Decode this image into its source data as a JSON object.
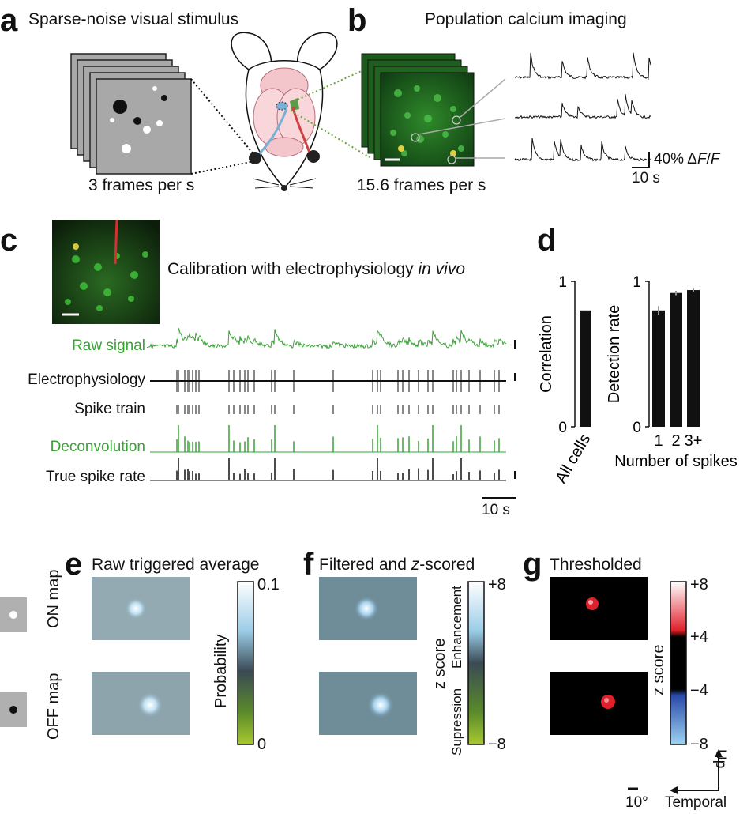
{
  "panels": {
    "a": {
      "label": "a",
      "title": "Sparse-noise visual stimulus",
      "rate": "3 frames per s"
    },
    "b": {
      "label": "b",
      "title": "Population calcium imaging",
      "rate": "15.6 frames per s",
      "scale_y": "40% ΔF/F",
      "scale_y_parts": [
        "40% Δ",
        "F",
        "/",
        "F"
      ],
      "scale_x": "10 s"
    },
    "c": {
      "label": "c",
      "title_main": "Calibration with electrophysiology ",
      "title_italic": "in vivo",
      "traces": [
        "Raw signal",
        "Electrophysiology",
        "Spike train",
        "Deconvolution",
        "True spike rate"
      ],
      "scale_x": "10 s"
    },
    "d": {
      "label": "d",
      "left_ylabel": "Correlation",
      "left_xlabel": "All cells",
      "right_ylabel": "Detection rate",
      "right_xlabel": "Number of spikes",
      "ytick_top": "1",
      "ytick_bottom": "0"
    },
    "e": {
      "label": "e",
      "title": "Raw triggered average",
      "cbar_label": "Probability",
      "cbar_top": "0.1",
      "cbar_bottom": "0"
    },
    "f": {
      "label": "f",
      "title_pre": "Filtered and ",
      "title_italic": "z",
      "title_post": "-scored",
      "cbar_label": "z score",
      "cbar_upper": "Enhancement",
      "cbar_lower": "Supression",
      "cbar_top": "+8",
      "cbar_bottom": "−8"
    },
    "g": {
      "label": "g",
      "title": "Thresholded",
      "cbar_label": "z score",
      "ticks": [
        "+8",
        "+4",
        "−4",
        "−8"
      ],
      "scale": "10°",
      "dir_up": "Up",
      "dir_left": "Temporal"
    },
    "rows": {
      "on": "ON map",
      "off": "OFF map"
    }
  },
  "chart_data": [
    {
      "type": "bar",
      "categories": [
        "All cells"
      ],
      "values": [
        0.8
      ],
      "ylabel": "Correlation",
      "ylim": [
        0,
        1
      ]
    },
    {
      "type": "bar",
      "categories": [
        "1",
        "2",
        "3+"
      ],
      "values": [
        0.8,
        0.92,
        0.94
      ],
      "errors": [
        0.03,
        0.015,
        0.01
      ],
      "xlabel": "Number of spikes",
      "ylabel": "Detection rate",
      "ylim": [
        0,
        1
      ]
    }
  ],
  "colors": {
    "green_text": "#3aa236",
    "bar": "#111111",
    "red_map": "#e0202a",
    "blue_map": "#7fc0f0"
  }
}
